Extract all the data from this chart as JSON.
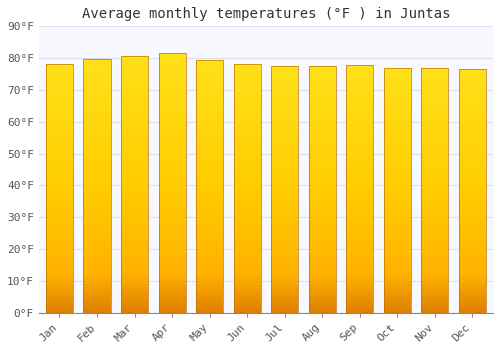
{
  "title": "Average monthly temperatures (°F ) in Juntas",
  "months": [
    "Jan",
    "Feb",
    "Mar",
    "Apr",
    "May",
    "Jun",
    "Jul",
    "Aug",
    "Sep",
    "Oct",
    "Nov",
    "Dec"
  ],
  "values": [
    78.3,
    79.7,
    80.8,
    81.5,
    79.3,
    78.3,
    77.5,
    77.5,
    77.7,
    77.0,
    76.8,
    76.5
  ],
  "bar_color_mid": "#FFAA00",
  "bar_color_bottom": "#F08000",
  "bar_color_top": "#FFD040",
  "bar_edge_color": "#C07000",
  "background_color": "#FFFFFF",
  "plot_bg_color": "#F8F8FF",
  "grid_color": "#DDDDEE",
  "ylim": [
    0,
    90
  ],
  "yticks": [
    0,
    10,
    20,
    30,
    40,
    50,
    60,
    70,
    80,
    90
  ],
  "ytick_labels": [
    "0°F",
    "10°F",
    "20°F",
    "30°F",
    "40°F",
    "50°F",
    "60°F",
    "70°F",
    "80°F",
    "90°F"
  ],
  "title_fontsize": 10,
  "tick_fontsize": 8,
  "font_family": "monospace",
  "bar_width": 0.72
}
